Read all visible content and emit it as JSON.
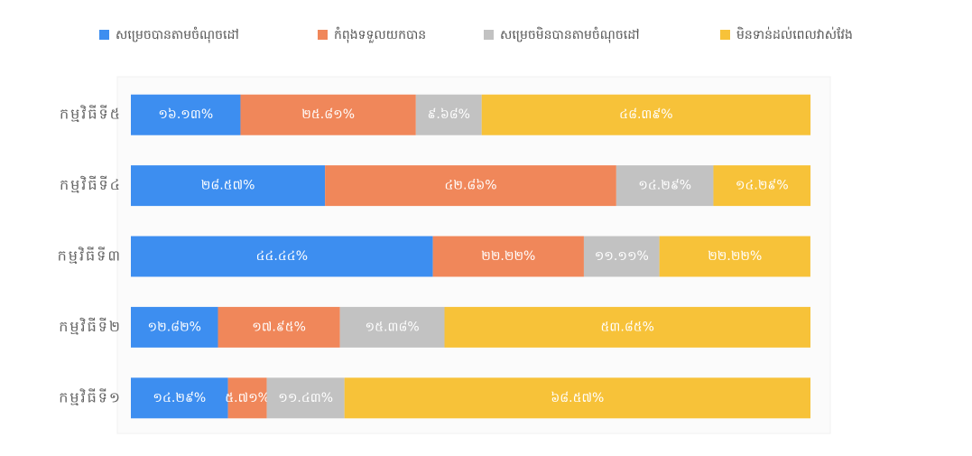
{
  "chart_data": {
    "type": "stacked_barh",
    "categories": [
      "កម្មវិធីទី៥",
      "កម្មវិធីទី៤",
      "កម្មវិធីទី៣",
      "កម្មវិធីទី២",
      "កម្មវិធីទី១"
    ],
    "series": [
      {
        "name": "សម្រេចបានតាមចំណុចដៅ",
        "color": "#3d8ef0",
        "values": [
          16.13,
          28.57,
          44.44,
          12.82,
          14.29
        ],
        "value_labels": [
          "១៦.១៣%",
          "២៨.៥៧%",
          "៤៤.៤៤%",
          "១២.៨២%",
          "១៤.២៩%"
        ]
      },
      {
        "name": "កំពុងទទួលយកបាន",
        "color": "#f0875a",
        "values": [
          25.81,
          42.86,
          22.22,
          17.95,
          5.71
        ],
        "value_labels": [
          "២៥.៨១%",
          "៤២.៨៦%",
          "២២.២២%",
          "១៧.៩៥%",
          "៥.៧១%"
        ]
      },
      {
        "name": "សម្រេចមិនបានតាមចំណុចដៅ",
        "color": "#c2c2c2",
        "values": [
          9.68,
          14.29,
          11.11,
          15.38,
          11.43
        ],
        "value_labels": [
          "៩.៦៨%",
          "១៤.២៩%",
          "១១.១១%",
          "១៥.៣៨%",
          "១១.៤៣%"
        ]
      },
      {
        "name": "មិនទាន់ដល់ពេលវាស់វែង",
        "color": "#f7c239",
        "values": [
          48.39,
          14.29,
          22.22,
          53.85,
          68.57
        ],
        "value_labels": [
          "៤៨.៣៩%",
          "១៤.២៩%",
          "២២.២២%",
          "៥៣.៨៥%",
          "៦៨.៥៧%"
        ]
      }
    ],
    "xlim": [
      0,
      100
    ],
    "legend": "top"
  }
}
